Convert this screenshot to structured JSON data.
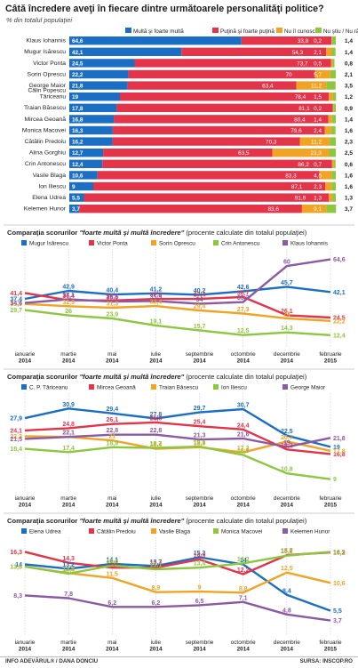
{
  "title": "Câtă încredere aveţi în fiecare dintre următoarele personalităţi politice?",
  "subtitle": "% din totalul populaţiei",
  "credit": "INFO ADEVĂRUL® / DANA DONCIU",
  "source": "SURSA: INSCOP.RO",
  "colors": {
    "blue": "#1a6fc4",
    "red": "#e3344a",
    "orange": "#f1a324",
    "green": "#8dc63f",
    "purple": "#8b5aa5",
    "darkblue": "#1f3c8a",
    "grey": "#9aa0a6"
  },
  "chart_data": [
    {
      "type": "bar",
      "stacked": true,
      "orientation": "horizontal",
      "legend": [
        "Multă şi foarte multă",
        "Puţină şi foarte puţină",
        "Nu îl cunosc",
        "Nu ştiu / Nu răspund"
      ],
      "categories": [
        "Klaus Iohannis",
        "Mugur Isărescu",
        "Victor Ponta",
        "Sorin Oprescu",
        "George Maior",
        "Călin Popescu Tăriceanu",
        "Traian Băsescu",
        "Mircea Geoană",
        "Monica Macovei",
        "Cătălin Predoiu",
        "Alina Gorghiu",
        "Crin Antonescu",
        "Vasile Blaga",
        "Ion Iliescu",
        "Elena Udrea",
        "Kelemen Hunor"
      ],
      "series": [
        {
          "name": "Multă şi foarte multă",
          "values": [
            64.6,
            42.1,
            24.5,
            22.2,
            21.8,
            19,
            17.8,
            16.8,
            16.3,
            16.2,
            12.7,
            12.4,
            10.6,
            9,
            5.5,
            3.7
          ]
        },
        {
          "name": "Puţină şi foarte puţină",
          "values": [
            33.8,
            54.3,
            73.7,
            70,
            63.4,
            78.4,
            81.1,
            80.4,
            79.6,
            70.3,
            63.5,
            86.2,
            83.3,
            87.1,
            91.9,
            83.6
          ]
        },
        {
          "name": "Nu îl cunosc",
          "values": [
            0.2,
            2.1,
            0.5,
            5.7,
            11.2,
            1.5,
            0.2,
            1.4,
            2.4,
            11.2,
            21.3,
            0.7,
            4.5,
            2.3,
            1.3,
            9.1
          ]
        },
        {
          "name": "Nu ştiu / Nu răspund",
          "values": [
            1.4,
            1.4,
            0.8,
            2.1,
            3.5,
            1.2,
            0.9,
            1.4,
            1.6,
            2.3,
            2.5,
            0.6,
            1.6,
            1.6,
            1.3,
            3.7
          ]
        }
      ],
      "labels": {
        "blue": [
          "64,6",
          "42,1",
          "24,5",
          "22,2",
          "21,8",
          "19",
          "17,8",
          "16,8",
          "16,3",
          "16,2",
          "12,7",
          "12,4",
          "10,6",
          "9",
          "5,5",
          "3,7"
        ],
        "red": [
          "33,8",
          "54,3",
          "73,7",
          "70",
          "63,4",
          "78,4",
          "81,1",
          "80,4",
          "79,6",
          "70,3",
          "63,5",
          "86,2",
          "83,3",
          "87,1",
          "91,9",
          "83,6"
        ],
        "orange": [
          "0,2",
          "2,1",
          "0,5",
          "5,7",
          "11,2",
          "1,5",
          "0,2",
          "1,4",
          "2,4",
          "11,2",
          "21,3",
          "0,7",
          "4,5",
          "2,3",
          "1,3",
          "9,1"
        ],
        "green": [
          "1,4",
          "1,4",
          "0,8",
          "2,1",
          "3,5",
          "1,2",
          "0,9",
          "1,4",
          "1,6",
          "2,3",
          "2,5",
          "0,6",
          "1,6",
          "1,6",
          "1,3",
          "3,7"
        ]
      }
    },
    {
      "type": "line",
      "title_prefix": "Comparaţia scorurilor ",
      "title_em": "\"foarte multă şi multă încredere\"",
      "title_suffix": " (procente calculate din totalul populaţiei)",
      "x": [
        "ianuarie 2014",
        "martie 2014",
        "mai 2014",
        "iulie 2014",
        "septembrie 2014",
        "octombrie 2014",
        "decembrie 2014",
        "februarie 2015"
      ],
      "ylim": [
        8,
        68
      ],
      "series": [
        {
          "name": "Mugur Isărescu",
          "color": "#1a6fc4",
          "values": [
            37.4,
            42.9,
            40.4,
            41.2,
            40.2,
            42.6,
            45.7,
            42.1
          ],
          "labels": [
            "37,4",
            "42,9",
            "40,4",
            "41,2",
            "40,2",
            "42,6",
            "45,7",
            "42,1"
          ]
        },
        {
          "name": "Victor Ponta",
          "color": "#e3344a",
          "values": [
            41.4,
            36.4,
            36.3,
            37.3,
            37.4,
            38.7,
            26.1,
            24.5
          ],
          "labels": [
            "41,4",
            "36,4",
            "36,3",
            "37,3",
            "37,4",
            "38,7",
            "26,1",
            "24,5"
          ]
        },
        {
          "name": "Sorin Oprescu",
          "color": "#f1a324",
          "values": [
            33.9,
            32.3,
            31.3,
            32.4,
            29.4,
            27.3,
            24,
            22.2
          ],
          "labels": [
            "33,9",
            "32,3",
            "31,3",
            "32,4",
            "29,4",
            "27,3",
            "24",
            "22,2"
          ]
        },
        {
          "name": "Crin Antonescu",
          "color": "#8dc63f",
          "values": [
            29.7,
            26,
            23.9,
            19.1,
            15.7,
            12.5,
            14.3,
            12.4
          ],
          "labels": [
            "29,7",
            "26",
            "23,9",
            "19,1",
            "15,7",
            "12,5",
            "14,3",
            "12,4"
          ]
        },
        {
          "name": "Klaus Iohannis",
          "color": "#8b5aa5",
          "values": [
            34.6,
            37.1,
            35.5,
            35.9,
            34,
            35.2,
            60,
            64.6
          ],
          "labels": [
            "34,6",
            "37,1",
            "35,5",
            "35,9",
            "34",
            "35,2",
            "60",
            "64,6"
          ]
        }
      ]
    },
    {
      "type": "line",
      "title_prefix": "Comparaţia scorurilor ",
      "title_em": "\"foarte multă şi multă încredere\"",
      "title_suffix": " (procente calculate din totalul populaţiei)",
      "x": [
        "ianuarie 2014",
        "martie 2014",
        "mai 2014",
        "iulie 2014",
        "septembrie 2014",
        "octombrie 2014",
        "decembrie 2014",
        "februarie 2015"
      ],
      "ylim": [
        7,
        34
      ],
      "series": [
        {
          "name": "C. P. Tăriceanu",
          "color": "#1a6fc4",
          "values": [
            27.9,
            30.9,
            29.4,
            27.8,
            29.7,
            30.7,
            22.5,
            19
          ],
          "labels": [
            "27,9",
            "30,9",
            "29,4",
            "27,8",
            "29,7",
            "30,7",
            "22,5",
            "19"
          ]
        },
        {
          "name": "Mircea Geoană",
          "color": "#e3344a",
          "values": [
            24.1,
            24.8,
            26.1,
            26.6,
            25.4,
            24.4,
            18.2,
            16.8
          ],
          "labels": [
            "24,1",
            "24,8",
            "26,1",
            "26,6",
            "25,4",
            "24,4",
            "18,2",
            "16,8"
          ]
        },
        {
          "name": "Traian Băsescu",
          "color": "#f1a324",
          "values": [
            22.3,
            22.1,
            21,
            18.4,
            18.9,
            17.3,
            20.7,
            17.8
          ],
          "labels": [
            "22,3",
            "22,1",
            "21",
            "18,4",
            "18,9",
            "17,3",
            "20,7",
            "17,8"
          ]
        },
        {
          "name": "Ion Iliescu",
          "color": "#8dc63f",
          "values": [
            18.4,
            17.4,
            18.9,
            18.7,
            19.1,
            16.5,
            10.8,
            9
          ],
          "labels": [
            "18,4",
            "17,4",
            "18,9",
            "18,7",
            "19,1",
            "16,5",
            "10,8",
            "9"
          ]
        },
        {
          "name": "George Maior",
          "color": "#8b5aa5",
          "values": [
            21.5,
            22.1,
            22.8,
            22.8,
            21.3,
            21.6,
            19,
            21.8
          ],
          "labels": [
            "21,5",
            "22,1",
            "22,8",
            "22,8",
            "21,3",
            "21,6",
            "19",
            "21,8"
          ]
        }
      ]
    },
    {
      "type": "line",
      "title_prefix": "Comparaţia scorurilor ",
      "title_em": "\"foarte multă şi multă încredere\"",
      "title_suffix": " (procente calculate din totalul populaţiei)",
      "x": [
        "ianuarie 2014",
        "martie 2014",
        "mai 2014",
        "iulie 2014",
        "septembrie 2014",
        "octombrie 2014",
        "decembrie 2014",
        "februarie 2015"
      ],
      "ylim": [
        2,
        18
      ],
      "series": [
        {
          "name": "Elena Udrea",
          "color": "#1a6fc4",
          "values": [
            14,
            13.2,
            14.1,
            13.7,
            15.3,
            14,
            8.4,
            5.5
          ],
          "labels": [
            "14",
            "13,2",
            "14,1",
            "13,7",
            "15,3",
            "14",
            "8,4",
            "5,5"
          ]
        },
        {
          "name": "Cătălin Predoiu",
          "color": "#e3344a",
          "values": [
            16.3,
            14.3,
            13.4,
            13.4,
            14.9,
            12.2,
            15.7,
            16.2
          ],
          "labels": [
            "16,3",
            "14,3",
            "13,4",
            "13,4",
            "14,9",
            "12,2",
            "15,7",
            "16,2"
          ]
        },
        {
          "name": "Vasile Blaga",
          "color": "#f1a324",
          "values": [
            13.6,
            12.4,
            11.5,
            8.9,
            9,
            8.8,
            12.5,
            10.6
          ],
          "labels": [
            "13,6",
            "12,4",
            "11,5",
            "8,9",
            "9",
            "8,8",
            "12,5",
            "10,6"
          ]
        },
        {
          "name": "Monica Macovei",
          "color": "#8dc63f",
          "values": [
            13.6,
            12.3,
            13.8,
            13.1,
            13.4,
            14.2,
            15.6,
            16.3
          ],
          "labels": [
            "13,6",
            "12,3",
            "13,8",
            "13,1",
            "13,4",
            "14,2",
            "15,6",
            "16,3"
          ]
        },
        {
          "name": "Kelemen Hunor",
          "color": "#8b5aa5",
          "values": [
            8.3,
            7.8,
            6.2,
            6.2,
            6.5,
            7.1,
            4.8,
            3.7
          ],
          "labels": [
            "8,3",
            "7,8",
            "6,2",
            "6,2",
            "6,5",
            "7,1",
            "4,8",
            "3,7"
          ]
        }
      ]
    }
  ]
}
